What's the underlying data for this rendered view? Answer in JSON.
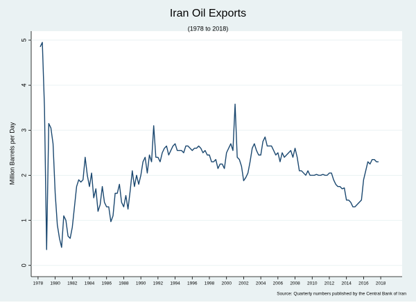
{
  "chart_data": {
    "type": "line",
    "title": "Iran Oil Exports",
    "subtitle": "(1978 to 2018)",
    "y_label": "Million Barrels per Day",
    "source": "Source: Quarterly numbers published by the Central Bank of Iran",
    "color": "#1a476f",
    "x": [
      1978.25,
      1978.5,
      1978.75,
      1979,
      1979.25,
      1979.5,
      1979.75,
      1980,
      1980.25,
      1980.5,
      1980.75,
      1981,
      1981.25,
      1981.5,
      1981.75,
      1982,
      1982.25,
      1982.5,
      1982.75,
      1983,
      1983.25,
      1983.5,
      1983.75,
      1984,
      1984.25,
      1984.5,
      1984.75,
      1985,
      1985.25,
      1985.5,
      1985.75,
      1986,
      1986.25,
      1986.5,
      1986.75,
      1987,
      1987.25,
      1987.5,
      1987.75,
      1988,
      1988.25,
      1988.5,
      1988.75,
      1989,
      1989.25,
      1989.5,
      1989.75,
      1990,
      1990.25,
      1990.5,
      1990.75,
      1991,
      1991.25,
      1991.5,
      1991.75,
      1992,
      1992.25,
      1992.5,
      1992.75,
      1993,
      1993.25,
      1993.5,
      1993.75,
      1994,
      1994.25,
      1994.5,
      1994.75,
      1995,
      1995.25,
      1995.5,
      1995.75,
      1996,
      1996.25,
      1996.5,
      1996.75,
      1997,
      1997.25,
      1997.5,
      1997.75,
      1998,
      1998.25,
      1998.5,
      1998.75,
      1999,
      1999.25,
      1999.5,
      1999.75,
      2000,
      2000.25,
      2000.5,
      2000.75,
      2001,
      2001.25,
      2001.5,
      2001.75,
      2002,
      2002.25,
      2002.5,
      2002.75,
      2003,
      2003.25,
      2003.5,
      2003.75,
      2004,
      2004.25,
      2004.5,
      2004.75,
      2005,
      2005.25,
      2005.5,
      2005.75,
      2006,
      2006.25,
      2006.5,
      2006.75,
      2007,
      2007.25,
      2007.5,
      2007.75,
      2008,
      2008.25,
      2008.5,
      2008.75,
      2009,
      2009.25,
      2009.5,
      2009.75,
      2010,
      2010.25,
      2010.5,
      2010.75,
      2011,
      2011.25,
      2011.5,
      2011.75,
      2012,
      2012.25,
      2012.5,
      2012.75,
      2013,
      2013.25,
      2013.5,
      2013.75,
      2014,
      2014.25,
      2014.5,
      2014.75,
      2015,
      2015.25,
      2015.5,
      2015.75,
      2016,
      2016.25,
      2016.5,
      2016.75,
      2017,
      2017.25,
      2017.5,
      2017.75
    ],
    "values": [
      4.85,
      4.95,
      3.5,
      0.35,
      3.15,
      3.05,
      2.7,
      1.6,
      0.9,
      0.6,
      0.4,
      1.1,
      1.0,
      0.65,
      0.6,
      0.85,
      1.3,
      1.75,
      1.9,
      1.85,
      1.9,
      2.4,
      2.0,
      1.75,
      2.05,
      1.5,
      1.7,
      1.2,
      1.35,
      1.75,
      1.4,
      1.3,
      1.3,
      0.97,
      1.1,
      1.6,
      1.6,
      1.8,
      1.4,
      1.3,
      1.55,
      1.25,
      1.65,
      2.1,
      1.75,
      2.0,
      1.8,
      2.0,
      2.3,
      2.4,
      2.05,
      2.45,
      2.3,
      3.1,
      2.4,
      2.4,
      2.3,
      2.5,
      2.6,
      2.65,
      2.45,
      2.55,
      2.65,
      2.7,
      2.55,
      2.55,
      2.55,
      2.5,
      2.65,
      2.65,
      2.6,
      2.55,
      2.6,
      2.6,
      2.65,
      2.6,
      2.5,
      2.55,
      2.45,
      2.45,
      2.3,
      2.3,
      2.35,
      2.15,
      2.25,
      2.25,
      2.15,
      2.5,
      2.6,
      2.7,
      2.55,
      3.58,
      2.4,
      2.35,
      2.2,
      1.88,
      1.95,
      2.05,
      2.3,
      2.6,
      2.7,
      2.55,
      2.45,
      2.45,
      2.75,
      2.85,
      2.65,
      2.65,
      2.65,
      2.55,
      2.45,
      2.5,
      2.3,
      2.5,
      2.4,
      2.45,
      2.5,
      2.55,
      2.4,
      2.6,
      2.4,
      2.1,
      2.1,
      2.05,
      2.0,
      2.1,
      2.0,
      2.0,
      2.0,
      2.02,
      2.0,
      2.0,
      2.02,
      2.0,
      2.0,
      2.05,
      2.05,
      1.9,
      1.8,
      1.75,
      1.75,
      1.7,
      1.72,
      1.45,
      1.45,
      1.4,
      1.3,
      1.3,
      1.35,
      1.4,
      1.45,
      1.9,
      2.1,
      2.3,
      2.25,
      2.35,
      2.35,
      2.3,
      2.3
    ],
    "xlim": [
      1977.2,
      2020.5
    ],
    "xticks": [
      1978,
      1980,
      1982,
      1984,
      1986,
      1988,
      1990,
      1992,
      1994,
      1996,
      1998,
      2000,
      2002,
      2004,
      2006,
      2008,
      2010,
      2012,
      2014,
      2016,
      2018
    ],
    "ylim": [
      -0.25,
      5.2
    ],
    "yticks": [
      0,
      1,
      2,
      3,
      4,
      5
    ],
    "grid": true
  }
}
